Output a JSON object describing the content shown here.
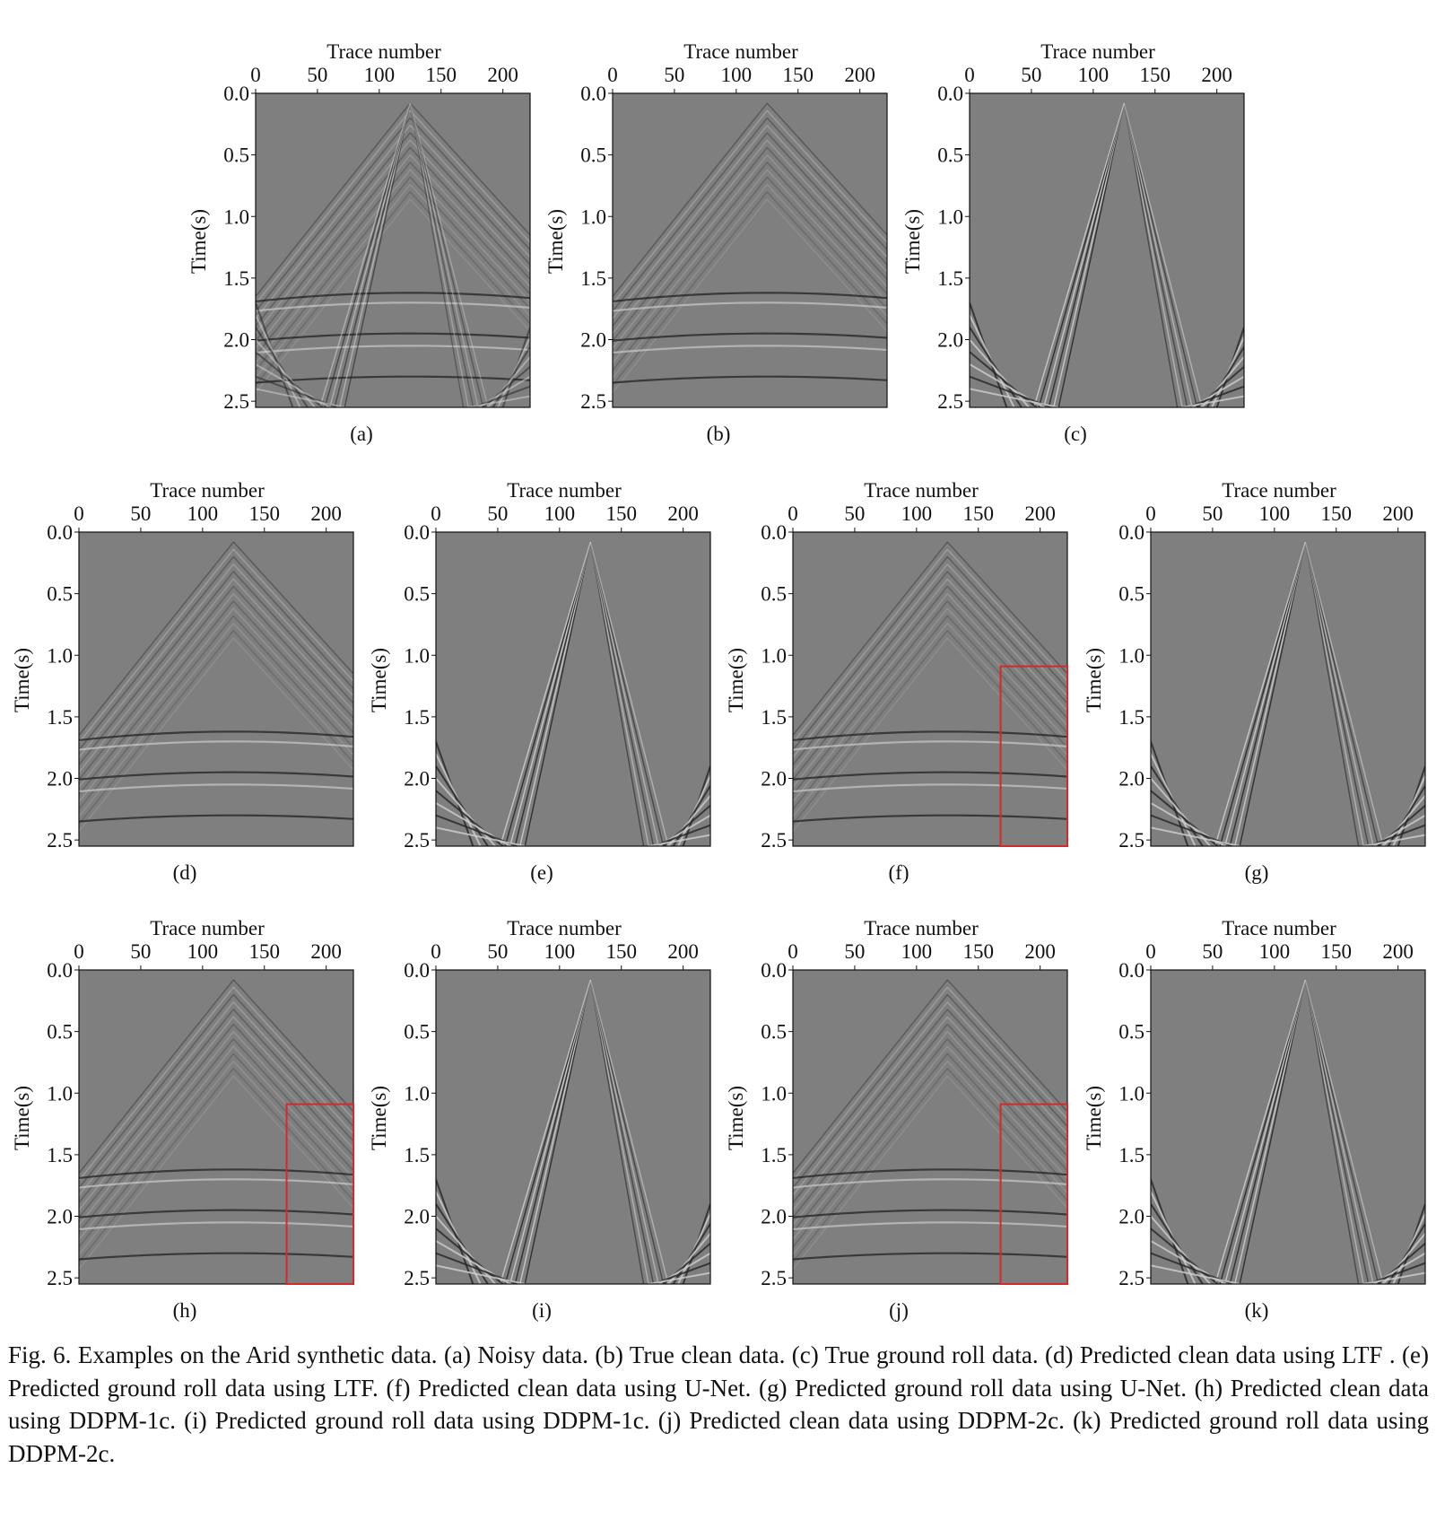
{
  "figure": {
    "panels": [
      {
        "label": "(a)",
        "xlabel": "Trace number",
        "ylabel": "Time(s)",
        "xlim": [
          0,
          222
        ],
        "ylim": [
          0,
          2.55
        ],
        "xticks": [
          0,
          50,
          100,
          150,
          200
        ],
        "yticks": [
          {
            "value": 0,
            "label": "0.0"
          },
          0.5,
          {
            "value": 1,
            "label": "1.0"
          },
          1.5,
          {
            "value": 2,
            "label": "2.0"
          },
          2.5
        ]
      },
      {
        "label": "(b)",
        "xlabel": "Trace number",
        "ylabel": "Time(s)",
        "xlim": [
          0,
          222
        ],
        "ylim": [
          0,
          2.55
        ],
        "xticks": [
          0,
          50,
          100,
          150,
          200
        ],
        "yticks": [
          {
            "value": 0,
            "label": "0.0"
          },
          0.5,
          {
            "value": 1,
            "label": "1.0"
          },
          1.5,
          {
            "value": 2,
            "label": "2.0"
          },
          2.5
        ]
      },
      {
        "label": "(c)",
        "xlabel": "Trace number",
        "ylabel": "Time(s)",
        "xlim": [
          0,
          222
        ],
        "ylim": [
          0,
          2.55
        ],
        "xticks": [
          0,
          50,
          100,
          150,
          200
        ],
        "yticks": [
          {
            "value": 0,
            "label": "0.0"
          },
          0.5,
          {
            "value": 1,
            "label": "1.0"
          },
          1.5,
          {
            "value": 2,
            "label": "2.0"
          },
          2.5
        ]
      },
      {
        "label": "(d)",
        "xlabel": "Trace number",
        "ylabel": "Time(s)",
        "xlim": [
          0,
          222
        ],
        "ylim": [
          0,
          2.55
        ],
        "xticks": [
          0,
          50,
          100,
          150,
          200
        ],
        "yticks": [
          {
            "value": 0,
            "label": "0.0"
          },
          0.5,
          {
            "value": 1,
            "label": "1.0"
          },
          1.5,
          {
            "value": 2,
            "label": "2.0"
          },
          2.5
        ]
      },
      {
        "label": "(e)",
        "xlabel": "Trace number",
        "ylabel": "Time(s)",
        "xlim": [
          0,
          222
        ],
        "ylim": [
          0,
          2.55
        ],
        "xticks": [
          0,
          50,
          100,
          150,
          200
        ],
        "yticks": [
          {
            "value": 0,
            "label": "0.0"
          },
          0.5,
          {
            "value": 1,
            "label": "1.0"
          },
          1.5,
          {
            "value": 2,
            "label": "2.0"
          },
          2.5
        ]
      },
      {
        "label": "(f)",
        "xlabel": "Trace number",
        "ylabel": "Time(s)",
        "xlim": [
          0,
          222
        ],
        "ylim": [
          0,
          2.55
        ],
        "xticks": [
          0,
          50,
          100,
          150,
          200
        ],
        "yticks": [
          {
            "value": 0,
            "label": "0.0"
          },
          0.5,
          {
            "value": 1,
            "label": "1.0"
          },
          1.5,
          {
            "value": 2,
            "label": "2.0"
          },
          2.5
        ],
        "highlight": {
          "xlim": [
            168,
            222
          ],
          "ylim": [
            1.09,
            2.55
          ],
          "color": "#d42a2a"
        }
      },
      {
        "label": "(g)",
        "xlabel": "Trace number",
        "ylabel": "Time(s)",
        "xlim": [
          0,
          222
        ],
        "ylim": [
          0,
          2.55
        ],
        "xticks": [
          0,
          50,
          100,
          150,
          200
        ],
        "yticks": [
          {
            "value": 0,
            "label": "0.0"
          },
          0.5,
          {
            "value": 1,
            "label": "1.0"
          },
          1.5,
          {
            "value": 2,
            "label": "2.0"
          },
          2.5
        ]
      },
      {
        "label": "(h)",
        "xlabel": "Trace number",
        "ylabel": "Time(s)",
        "xlim": [
          0,
          222
        ],
        "ylim": [
          0,
          2.55
        ],
        "xticks": [
          0,
          50,
          100,
          150,
          200
        ],
        "yticks": [
          {
            "value": 0,
            "label": "0.0"
          },
          0.5,
          {
            "value": 1,
            "label": "1.0"
          },
          1.5,
          {
            "value": 2,
            "label": "2.0"
          },
          2.5
        ],
        "highlight": {
          "xlim": [
            168,
            222
          ],
          "ylim": [
            1.09,
            2.55
          ],
          "color": "#d42a2a"
        }
      },
      {
        "label": "(i)",
        "xlabel": "Trace number",
        "ylabel": "Time(s)",
        "xlim": [
          0,
          222
        ],
        "ylim": [
          0,
          2.55
        ],
        "xticks": [
          0,
          50,
          100,
          150,
          200
        ],
        "yticks": [
          {
            "value": 0,
            "label": "0.0"
          },
          0.5,
          {
            "value": 1,
            "label": "1.0"
          },
          1.5,
          {
            "value": 2,
            "label": "2.0"
          },
          2.5
        ]
      },
      {
        "label": "(j)",
        "xlabel": "Trace number",
        "ylabel": "Time(s)",
        "xlim": [
          0,
          222
        ],
        "ylim": [
          0,
          2.55
        ],
        "xticks": [
          0,
          50,
          100,
          150,
          200
        ],
        "yticks": [
          {
            "value": 0,
            "label": "0.0"
          },
          0.5,
          {
            "value": 1,
            "label": "1.0"
          },
          1.5,
          {
            "value": 2,
            "label": "2.0"
          },
          2.5
        ],
        "highlight": {
          "xlim": [
            168,
            222
          ],
          "ylim": [
            1.09,
            2.55
          ],
          "color": "#d42a2a"
        }
      },
      {
        "label": "(k)",
        "xlabel": "Trace number",
        "ylabel": "Time(s)",
        "xlim": [
          0,
          222
        ],
        "ylim": [
          0,
          2.55
        ],
        "xticks": [
          0,
          50,
          100,
          150,
          200
        ],
        "yticks": [
          {
            "value": 0,
            "label": "0.0"
          },
          0.5,
          {
            "value": 1,
            "label": "1.0"
          },
          1.5,
          {
            "value": 2,
            "label": "2.0"
          },
          2.5
        ]
      }
    ],
    "caption": "Fig. 6. Examples on the Arid synthetic data. (a) Noisy data. (b) True clean data. (c) True ground roll data. (d) Predicted clean data using LTF . (e) Predicted ground roll data using LTF. (f) Predicted clean data using U-Net. (g) Predicted ground roll data using U-Net. (h) Predicted clean data using DDPM-1c. (i) Predicted ground roll data using DDPM-1c. (j) Predicted clean data using DDPM-2c. (k) Predicted ground roll data using DDPM-2c."
  }
}
